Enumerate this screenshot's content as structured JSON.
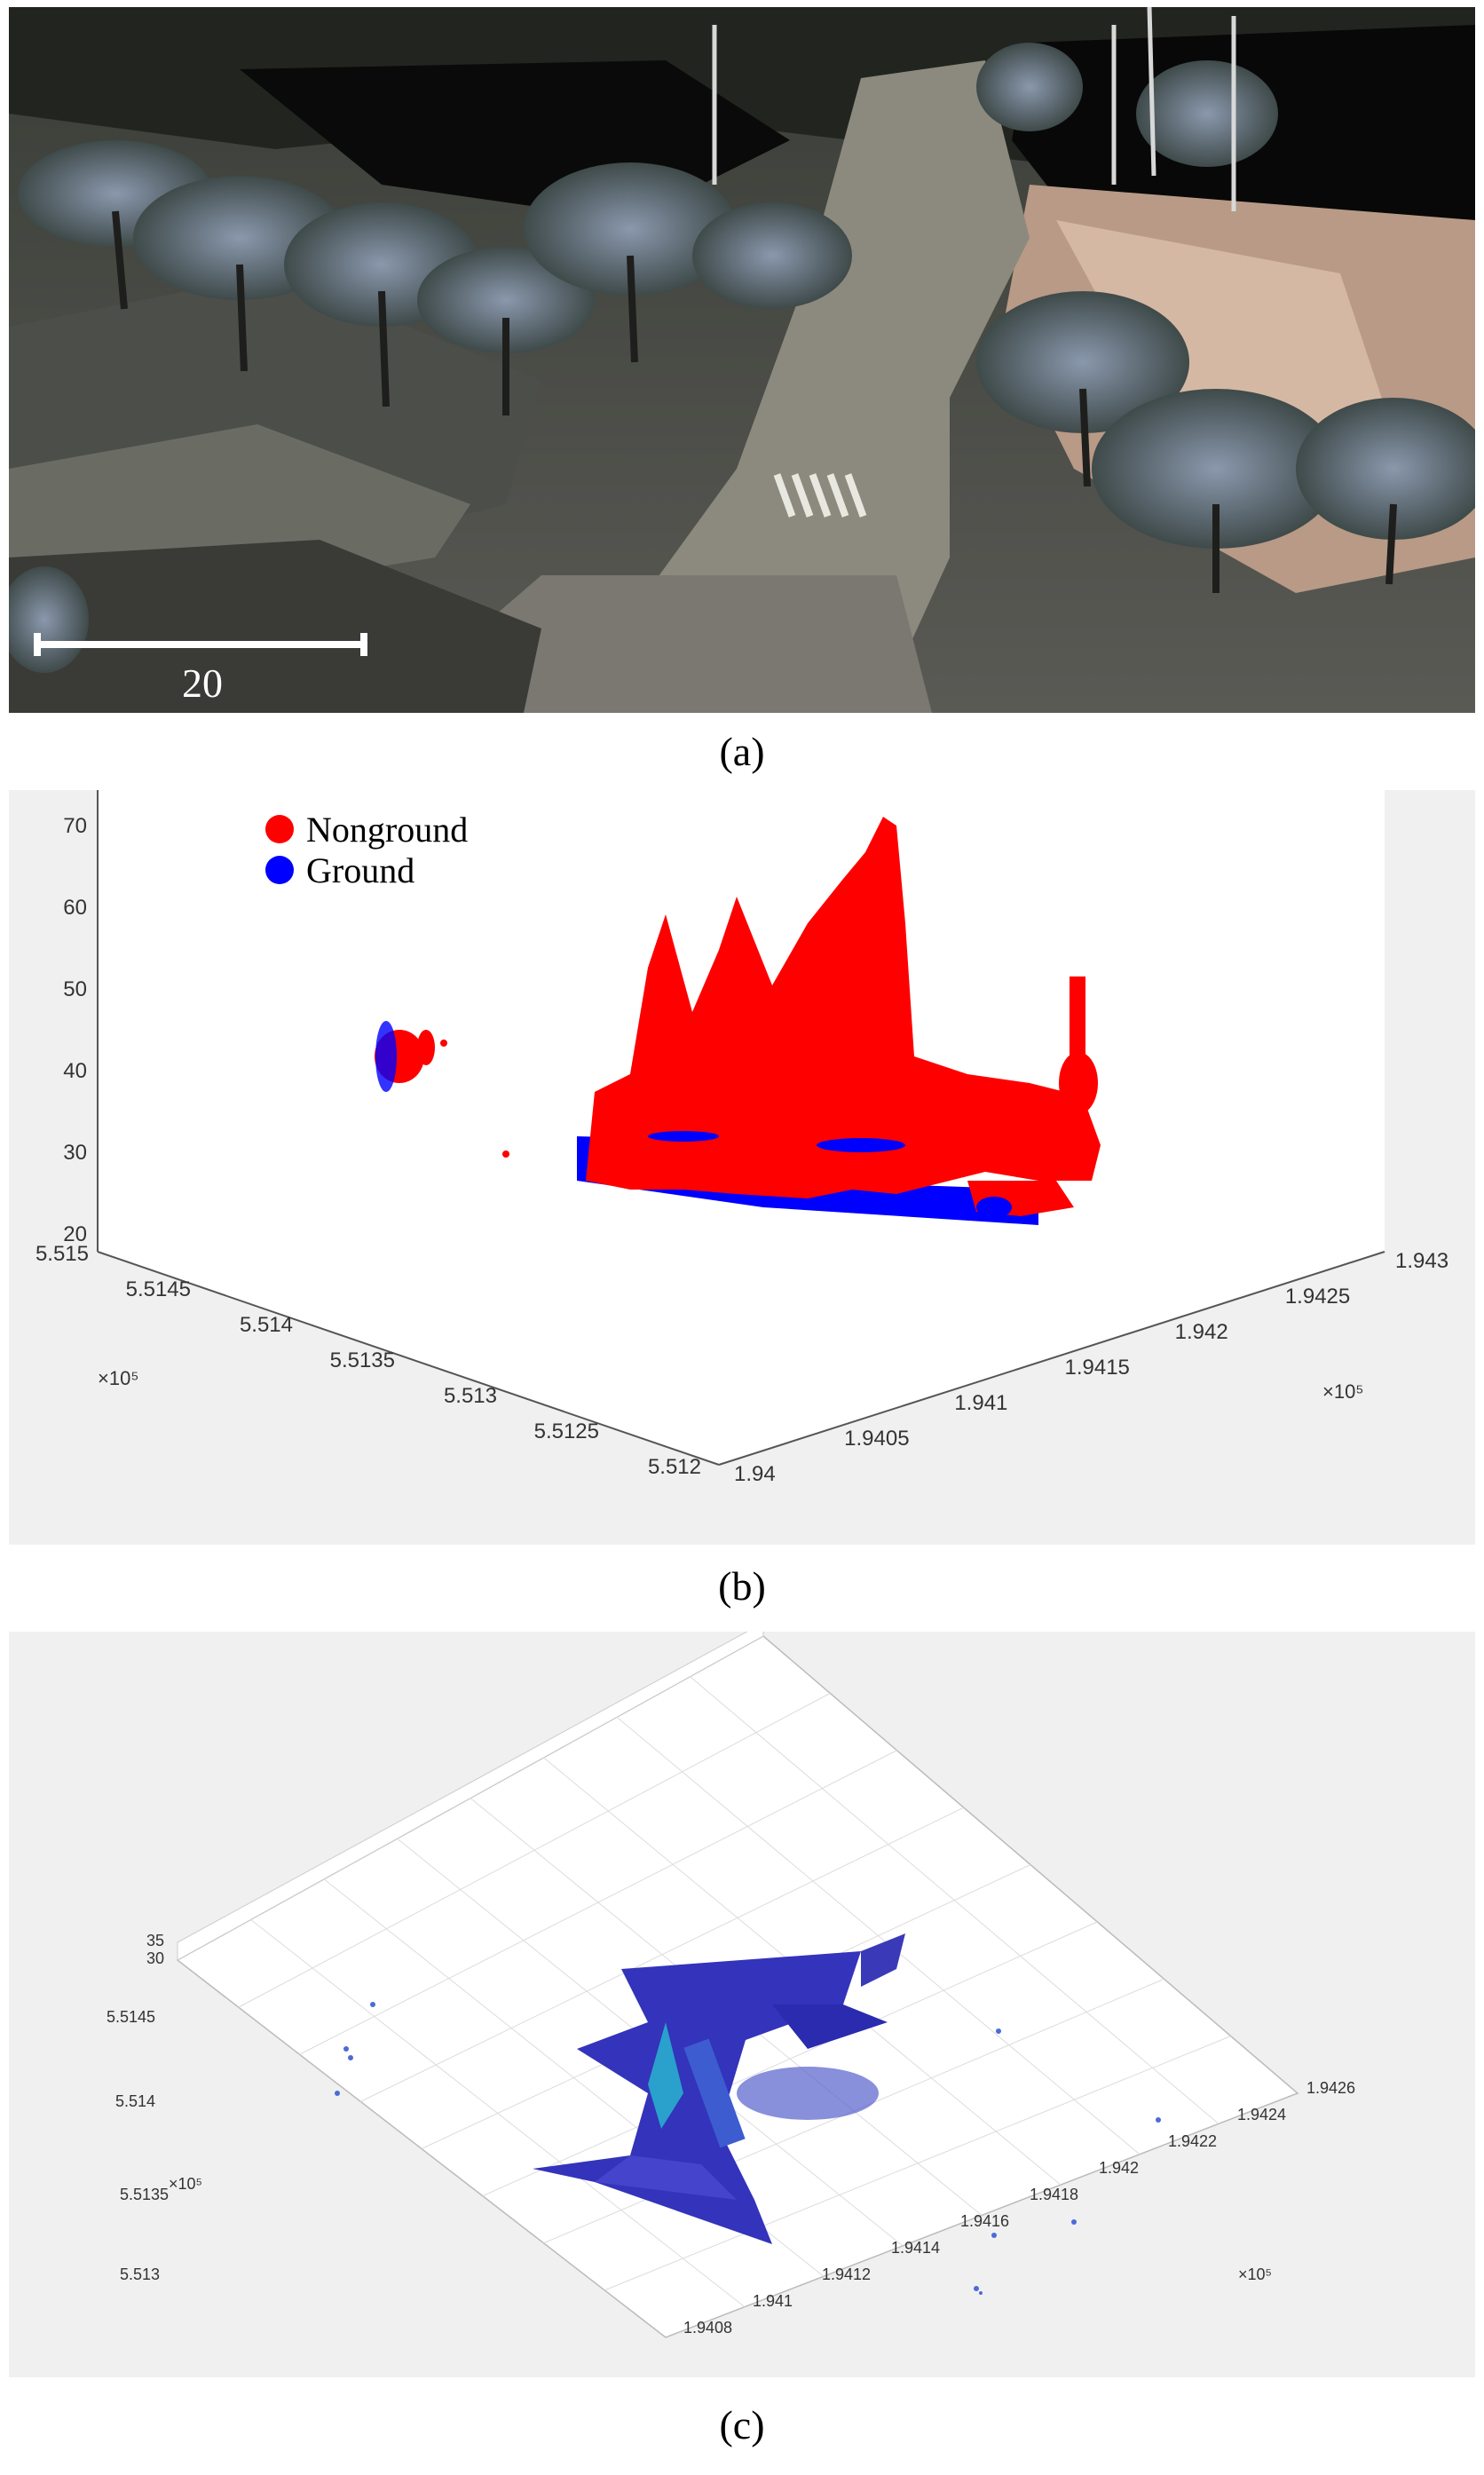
{
  "panel_a": {
    "scale_bar_label": "20",
    "caption": "(a)"
  },
  "panel_b": {
    "caption": "(b)",
    "chart_data": {
      "type": "scatter",
      "title": "",
      "legend": {
        "placement": "top-left",
        "entries": [
          "Nonground",
          "Ground"
        ]
      },
      "series": [
        {
          "name": "Nonground",
          "color": "#ff0000"
        },
        {
          "name": "Ground",
          "color": "#0000ff"
        }
      ],
      "z_axis": {
        "ticks": [
          "70",
          "60",
          "50",
          "40",
          "30",
          "20"
        ],
        "range": [
          20,
          75
        ]
      },
      "y_axis": {
        "ticks": [
          "5.515",
          "5.5145",
          "5.514",
          "5.5135",
          "5.513",
          "5.5125",
          "5.512"
        ],
        "exponent": "×10⁵"
      },
      "x_axis": {
        "ticks": [
          "1.94",
          "1.9405",
          "1.941",
          "1.9415",
          "1.942",
          "1.9425",
          "1.943"
        ],
        "exponent": "×10⁵"
      }
    }
  },
  "panel_c": {
    "caption": "(c)",
    "chart_data": {
      "type": "scatter",
      "title": "",
      "z_axis": {
        "ticks": [
          "35",
          "30"
        ]
      },
      "y_axis": {
        "ticks": [
          "5.5145",
          "5.514",
          "5.5135",
          "5.513"
        ],
        "exponent": "×10⁵"
      },
      "x_axis": {
        "ticks": [
          "1.9408",
          "1.941",
          "1.9412",
          "1.9414",
          "1.9416",
          "1.9418",
          "1.942",
          "1.9422",
          "1.9424",
          "1.9426"
        ],
        "exponent": "×10⁵"
      }
    }
  }
}
